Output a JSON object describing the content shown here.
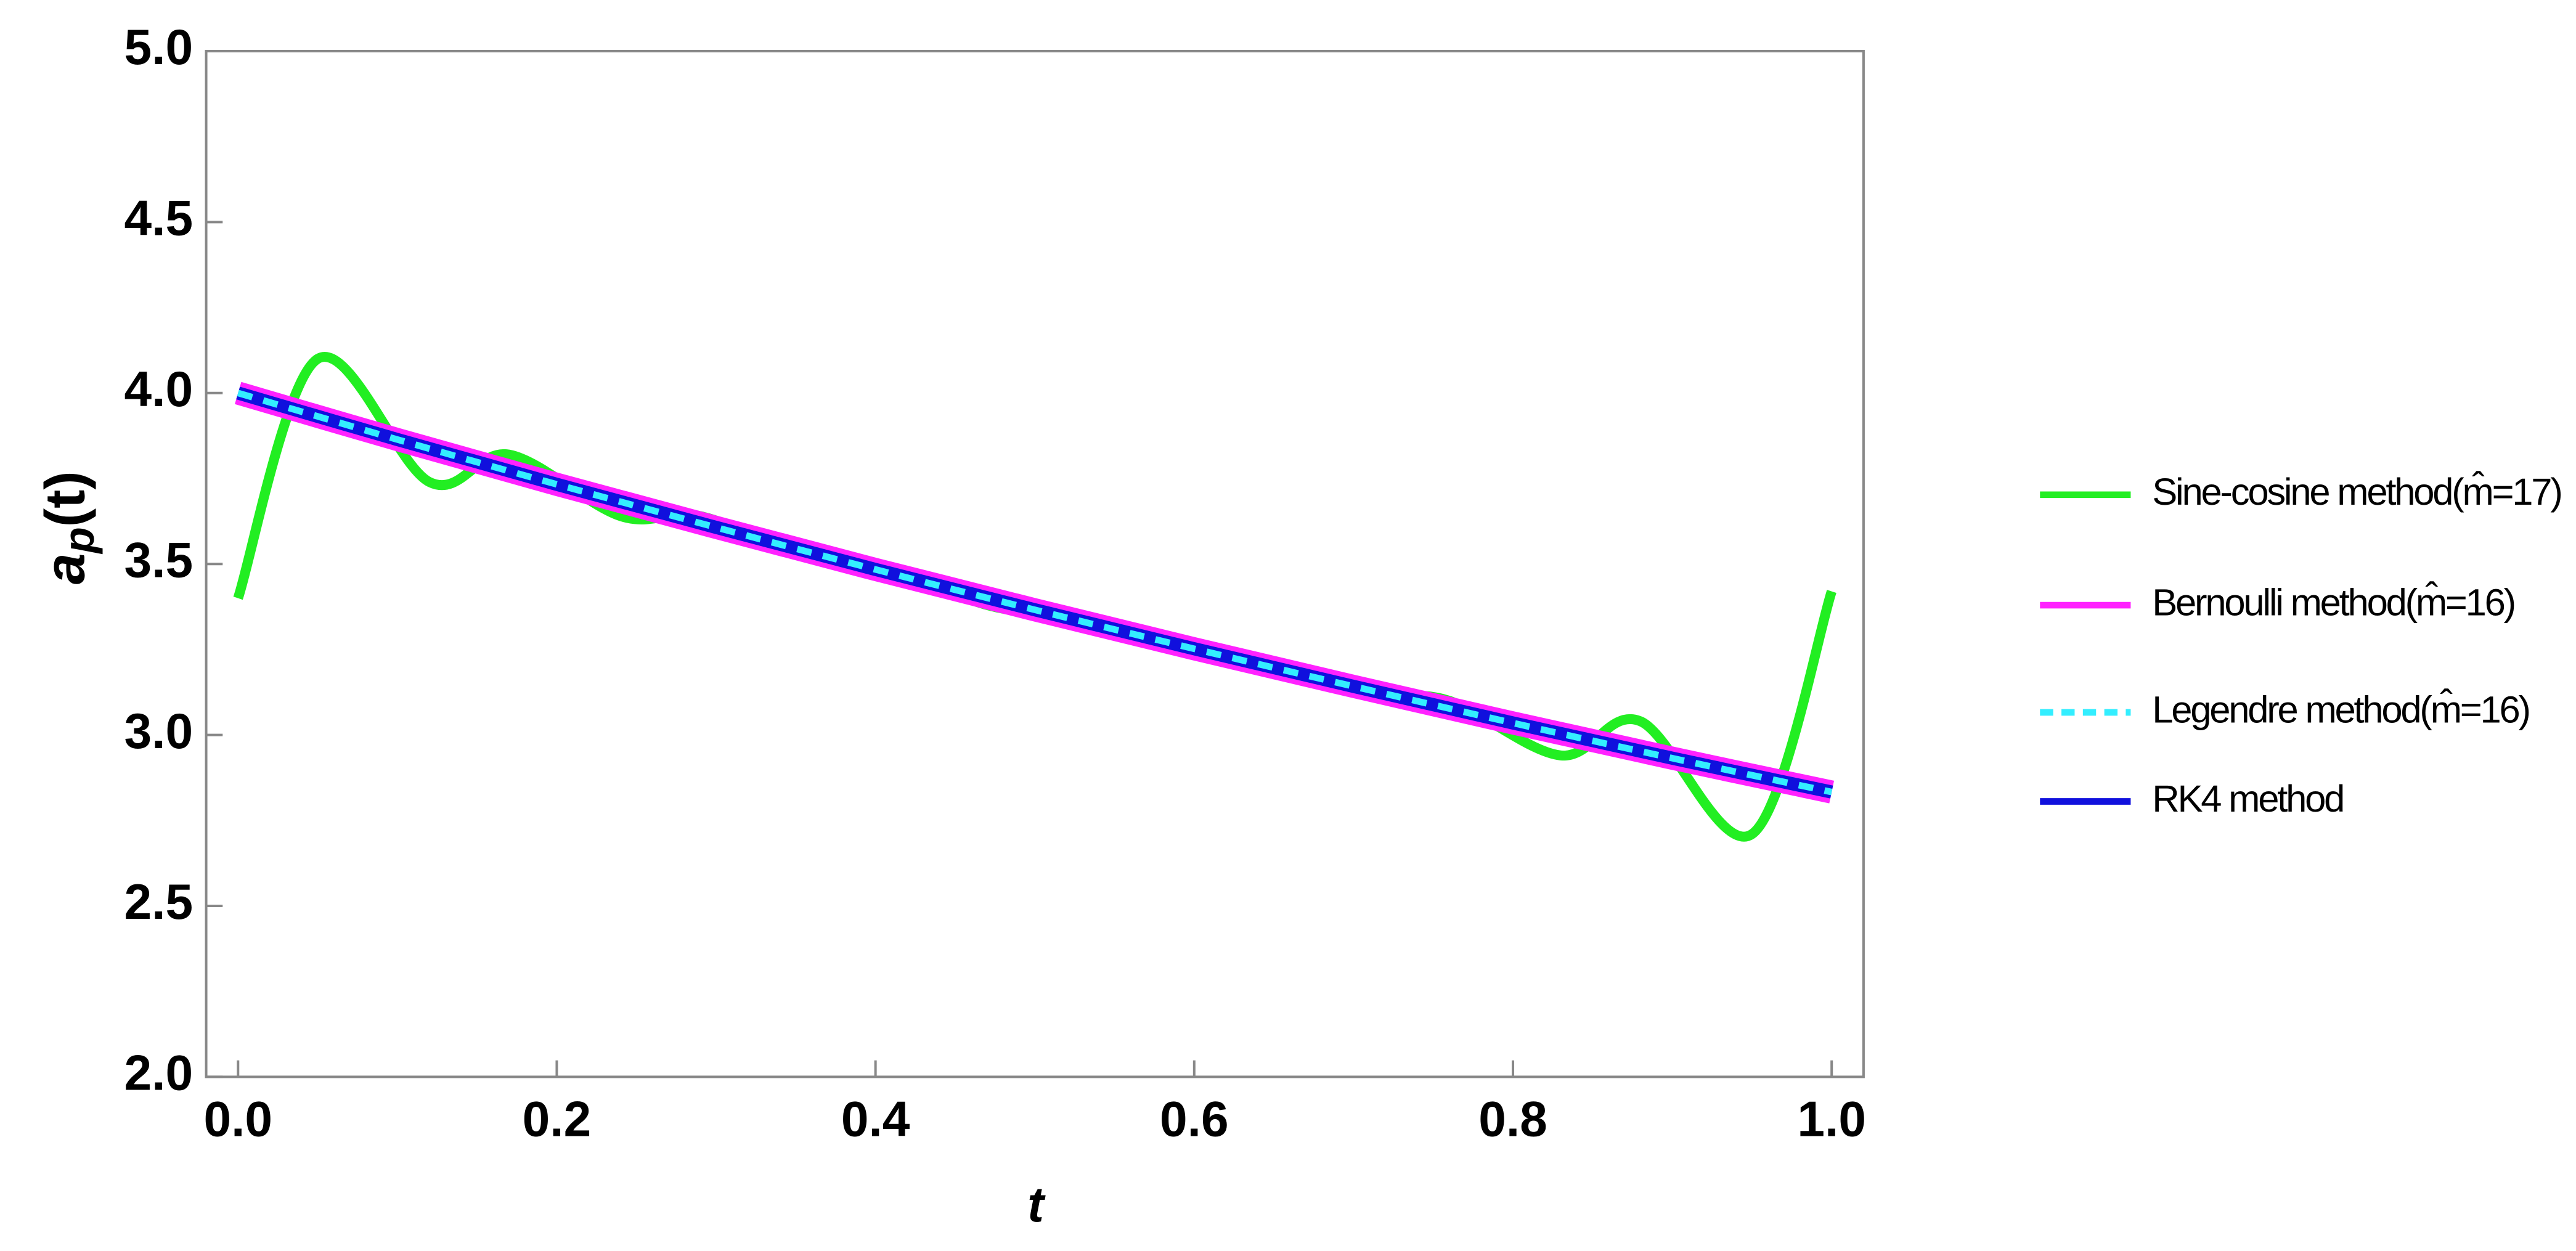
{
  "chart_data": {
    "type": "line",
    "x_label": "t",
    "y_label": {
      "base": "a",
      "subscript": "p",
      "suffix": "(t)"
    },
    "xlim": [
      -0.02,
      1.02
    ],
    "ylim": [
      2,
      5
    ],
    "xticks": [
      {
        "value": 0,
        "label": "0.0"
      },
      0.2,
      0.4,
      0.6,
      0.8,
      {
        "value": 1,
        "label": "1.0"
      }
    ],
    "yticks": [
      {
        "value": 2,
        "label": "2.0"
      },
      2.5,
      {
        "value": 3,
        "label": "3.0"
      },
      3.5,
      {
        "value": 4,
        "label": "4.0"
      },
      4.5,
      {
        "value": 5,
        "label": "5.0"
      }
    ],
    "legend": "right",
    "series": [
      {
        "name": "Sine-cosine method(m̂=17)",
        "color": "#22ee22",
        "x": [
          0,
          0.05,
          0.12,
          0.17,
          0.24,
          0.29,
          0.36,
          0.41,
          0.47,
          0.52,
          0.59,
          0.64,
          0.71,
          0.76,
          0.83,
          0.88,
          0.95,
          1.0
        ],
        "values": [
          3.4,
          4.1,
          3.74,
          3.82,
          3.64,
          3.64,
          3.52,
          3.48,
          3.38,
          3.34,
          3.25,
          3.21,
          3.12,
          3.1,
          2.94,
          3.04,
          2.71,
          3.42
        ]
      },
      {
        "name": "Bernoulli method(m̂=16)",
        "color": "#ff22ff",
        "x": [
          0,
          0.1,
          0.2,
          0.3,
          0.4,
          0.5,
          0.6,
          0.7,
          0.8,
          0.9,
          1.0
        ],
        "values": [
          4.0,
          3.864,
          3.733,
          3.607,
          3.484,
          3.366,
          3.252,
          3.142,
          3.035,
          2.932,
          2.833
        ]
      },
      {
        "name": "RK4 method",
        "color": "#1010dd",
        "x": [
          0,
          0.1,
          0.2,
          0.3,
          0.4,
          0.5,
          0.6,
          0.7,
          0.8,
          0.9,
          1.0
        ],
        "values": [
          4.0,
          3.864,
          3.733,
          3.607,
          3.484,
          3.366,
          3.252,
          3.142,
          3.035,
          2.932,
          2.833
        ]
      },
      {
        "name": "Legendre method(m̂=16)",
        "color": "#33eeff",
        "dash": true,
        "x": [
          0,
          0.1,
          0.2,
          0.3,
          0.4,
          0.5,
          0.6,
          0.7,
          0.8,
          0.9,
          1.0
        ],
        "values": [
          4.0,
          3.864,
          3.733,
          3.607,
          3.484,
          3.366,
          3.252,
          3.142,
          3.035,
          2.932,
          2.833
        ]
      }
    ]
  }
}
